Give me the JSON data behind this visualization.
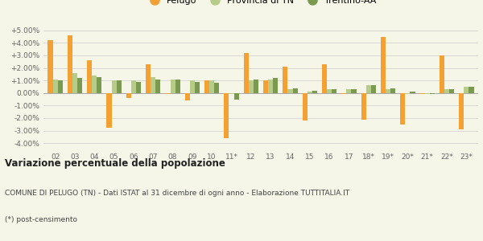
{
  "years": [
    "02",
    "03",
    "04",
    "05",
    "06",
    "07",
    "08",
    "09",
    "10",
    "11*",
    "12",
    "13",
    "14",
    "15",
    "16",
    "17",
    "18*",
    "19*",
    "20*",
    "21*",
    "22*",
    "23*"
  ],
  "pelugo": [
    4.2,
    4.6,
    2.6,
    -2.8,
    -0.4,
    2.3,
    -0.1,
    -0.6,
    1.0,
    -3.6,
    3.2,
    1.0,
    2.1,
    -2.2,
    2.3,
    -0.1,
    -2.1,
    4.5,
    -2.5,
    -0.1,
    3.0,
    -2.9
  ],
  "provincia_tn": [
    1.1,
    1.6,
    1.4,
    1.0,
    1.0,
    1.3,
    1.1,
    1.0,
    1.0,
    -0.1,
    1.0,
    1.1,
    0.3,
    0.1,
    0.3,
    0.3,
    0.6,
    0.3,
    -0.1,
    -0.1,
    0.3,
    0.5
  ],
  "trentino_aa": [
    1.0,
    1.2,
    1.3,
    1.0,
    0.9,
    1.1,
    1.1,
    0.9,
    0.85,
    -0.55,
    1.1,
    1.2,
    0.35,
    0.2,
    0.3,
    0.3,
    0.6,
    0.35,
    0.1,
    -0.05,
    0.3,
    0.5
  ],
  "color_pelugo": "#f5a033",
  "color_provincia": "#b8cc8a",
  "color_trentino": "#7a9a50",
  "title_bold": "Variazione percentuale della popolazione",
  "subtitle1": "COMUNE DI PELUGO (TN) - Dati ISTAT al 31 dicembre di ogni anno - Elaborazione TUTTITALIA.IT",
  "subtitle2": "(*) post-censimento",
  "ylim": [
    -4.5,
    5.5
  ],
  "yticks": [
    -4.0,
    -3.0,
    -2.0,
    -1.0,
    0.0,
    1.0,
    2.0,
    3.0,
    4.0,
    5.0
  ],
  "ytick_labels": [
    "-4.00%",
    "-3.00%",
    "-2.00%",
    "-1.00%",
    "0.00%",
    "+1.00%",
    "+2.00%",
    "+3.00%",
    "+4.00%",
    "+5.00%"
  ],
  "background_color": "#f5f5e8",
  "legend_labels": [
    "Pelugo",
    "Provincia di TN",
    "Trentino-AA"
  ]
}
